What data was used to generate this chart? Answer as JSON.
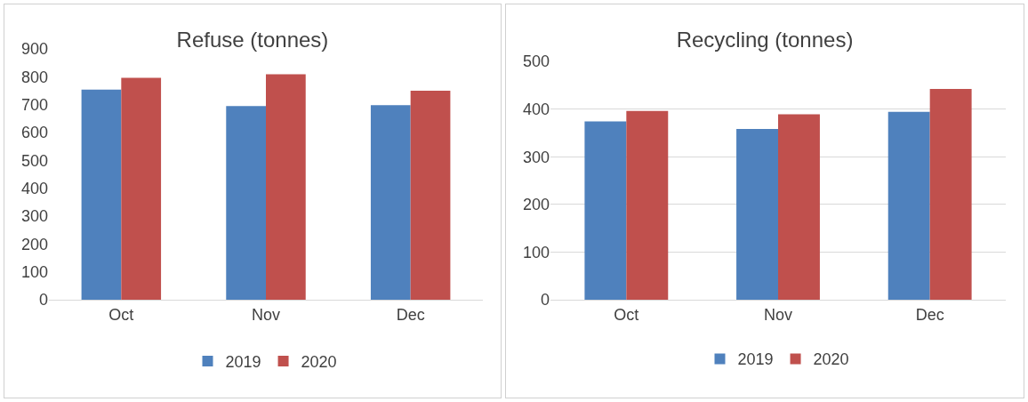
{
  "chart_data": [
    {
      "type": "bar",
      "title": "Refuse (tonnes)",
      "categories": [
        "Oct",
        "Nov",
        "Dec"
      ],
      "series": [
        {
          "name": "2019",
          "color": "#4f81bd",
          "values": [
            754,
            695,
            698
          ]
        },
        {
          "name": "2020",
          "color": "#c0504d",
          "values": [
            796,
            809,
            750
          ]
        }
      ],
      "ylim": [
        0,
        900
      ],
      "yticks": [
        0,
        100,
        200,
        300,
        400,
        500,
        600,
        700,
        800,
        900
      ],
      "grid": false,
      "legend": "bottom"
    },
    {
      "type": "bar",
      "title": "Recycling (tonnes)",
      "categories": [
        "Oct",
        "Nov",
        "Dec"
      ],
      "series": [
        {
          "name": "2019",
          "color": "#4f81bd",
          "values": [
            374,
            358,
            394
          ]
        },
        {
          "name": "2020",
          "color": "#c0504d",
          "values": [
            396,
            389,
            442
          ]
        }
      ],
      "ylim": [
        0,
        500
      ],
      "yticks": [
        0,
        100,
        200,
        300,
        400,
        500
      ],
      "grid": "y",
      "legend": "bottom"
    }
  ]
}
